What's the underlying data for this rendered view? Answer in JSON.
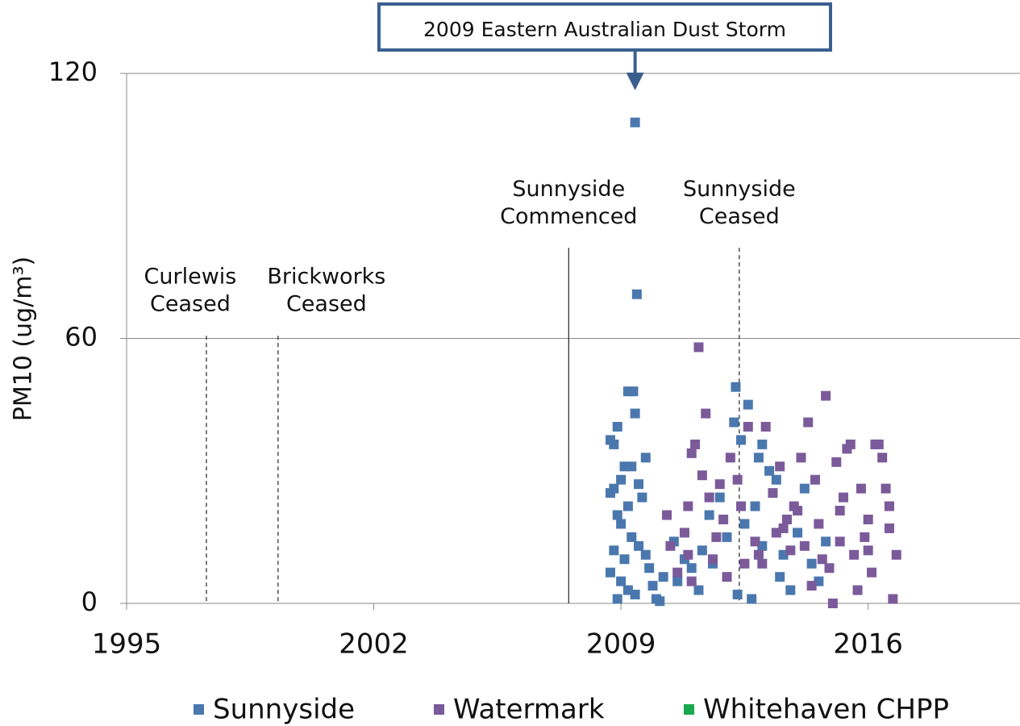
{
  "chart_data": {
    "type": "scatter",
    "y_label": "PM10 (ug/m³)",
    "xlim": [
      1995,
      2020.3
    ],
    "xticks": [
      1995,
      2002,
      2009,
      2016
    ],
    "ylim": [
      0,
      120
    ],
    "yticks": [
      0,
      60,
      120
    ],
    "grid": true,
    "legend": "bottom",
    "series": [
      {
        "name": "Sunnyside",
        "color": "#4a78ae",
        "x": [
          2009.4,
          2009.45,
          2009.2,
          2009.35,
          2009.4,
          2008.9,
          2008.7,
          2008.8,
          2009.7,
          2009.3,
          2009.1,
          2009.0,
          2008.8,
          2008.7,
          2009.5,
          2009.6,
          2009.2,
          2008.9,
          2009.0,
          2009.3,
          2009.5,
          2008.8,
          2009.1,
          2008.7,
          2009.0,
          2009.2,
          2008.9,
          2009.4,
          2009.8,
          2009.9,
          2010.0,
          2010.1,
          2009.7,
          2010.2,
          2010.5,
          2010.8,
          2011.0,
          2011.2,
          2011.3,
          2010.6,
          2011.5,
          2011.6,
          2011.8,
          2012.0,
          2012.2,
          2012.25,
          2012.4,
          2012.6,
          2012.5,
          2012.3,
          2012.7,
          2012.8,
          2013.0,
          2013.0,
          2012.9,
          2013.2,
          2013.4,
          2013.5,
          2013.6,
          2013.8,
          2014.0,
          2014.2,
          2014.4,
          2014.6,
          2013.7,
          2014.8
        ],
        "values": [
          108.9,
          70,
          48,
          48,
          43,
          40,
          37,
          36,
          33,
          31,
          31,
          28,
          26,
          25,
          27,
          24,
          22,
          20,
          18,
          15,
          13,
          12,
          10,
          7,
          5,
          3,
          1,
          2,
          8,
          4,
          1,
          0.5,
          11,
          6,
          14,
          10,
          8,
          3,
          12,
          5,
          20,
          9,
          24,
          15,
          41,
          49,
          37,
          45,
          18,
          2,
          1,
          22,
          13,
          36,
          33,
          30,
          28,
          6,
          11,
          3,
          16,
          26,
          9,
          5,
          19,
          14
        ]
      },
      {
        "name": "Watermark",
        "color": "#7b5a9a",
        "x": [
          2010.3,
          2010.4,
          2010.6,
          2010.8,
          2010.9,
          2011.0,
          2011.1,
          2011.2,
          2011.4,
          2011.3,
          2011.5,
          2011.6,
          2011.7,
          2011.9,
          2012.1,
          2012.3,
          2012.4,
          2012.6,
          2012.8,
          2013.0,
          2013.1,
          2013.3,
          2013.5,
          2013.6,
          2013.8,
          2014.0,
          2014.1,
          2014.3,
          2014.5,
          2014.6,
          2014.8,
          2014.9,
          2015.1,
          2015.2,
          2015.4,
          2015.5,
          2015.3,
          2015.6,
          2015.8,
          2016.0,
          2016.1,
          2016.2,
          2016.3,
          2016.4,
          2016.5,
          2016.6,
          2016.7,
          2016.8,
          2015.9,
          2015.0,
          2014.4,
          2013.9,
          2012.0,
          2011.8,
          2012.9,
          2013.4,
          2014.2,
          2016.6,
          2015.7,
          2012.5,
          2011.0,
          2010.9,
          2013.7,
          2014.7,
          2016.0,
          2015.2
        ],
        "values": [
          20,
          13,
          7,
          16,
          22,
          34,
          36,
          58,
          43,
          29,
          24,
          10,
          15,
          19,
          33,
          28,
          22,
          40,
          14,
          9,
          40,
          25,
          31,
          17,
          12,
          21,
          33,
          41,
          28,
          18,
          47,
          8,
          32,
          14,
          35,
          36,
          24,
          11,
          26,
          19,
          7,
          36,
          36,
          33,
          26,
          17,
          1,
          11,
          15,
          0,
          4,
          22,
          6,
          27,
          11,
          16,
          13,
          22,
          3,
          9,
          5,
          11,
          19,
          10,
          12,
          21
        ]
      },
      {
        "name": "Whitehaven CHPP",
        "color": "#1aa84f",
        "x": [],
        "values": []
      }
    ],
    "annotations": [
      {
        "label": [
          "Curlewis",
          "Ceased"
        ],
        "x": 1997.26,
        "y": 60.6,
        "style": "dashed"
      },
      {
        "label": [
          "Brickworks",
          "Ceased"
        ],
        "x": 1999.29,
        "y": 60.6,
        "style": "dashed"
      },
      {
        "label": [
          "Sunnyside",
          "Commenced"
        ],
        "x": 2007.52,
        "y": 80.5,
        "style": "solid"
      },
      {
        "label": [
          "Sunnyside",
          "Ceased"
        ],
        "x": 2012.35,
        "y": 80.5,
        "style": "dashed"
      }
    ],
    "callout": {
      "label": "2009 Eastern Australian Dust Storm",
      "x": 2009.4
    }
  }
}
